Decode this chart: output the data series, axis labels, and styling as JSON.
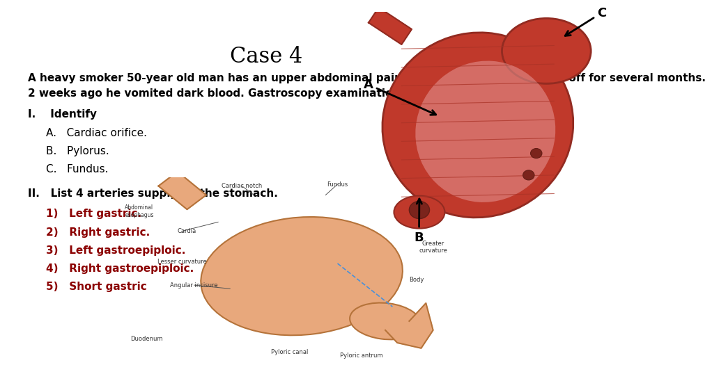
{
  "title": "Case 4",
  "title_fontsize": 22,
  "title_font": "serif",
  "background_color": "#ffffff",
  "intro_text": "A heavy smoker 50-year old man has an upper abdominal pain and heartburn that on and off for several months.\n2 weeks ago he vomited dark blood. Gastroscopy examination revealed peptic ulcer.",
  "intro_fontsize": 11,
  "section1_header": "I.    Identify",
  "section1_items": [
    "A.   Cardiac orifice.",
    "B.   Pylorus.",
    "C.   Fundus."
  ],
  "section2_header": "II.   List 4 arteries supplying the stomach.",
  "section2_items": [
    "1)   Left gastric.",
    "2)   Right gastric.",
    "3)   Left gastroepiploic.",
    "4)   Right gastroepiploic.",
    "5)   Short gastric"
  ],
  "section2_item_color": "#8b0000",
  "section_header_fontsize": 11,
  "section_item_fontsize": 11
}
